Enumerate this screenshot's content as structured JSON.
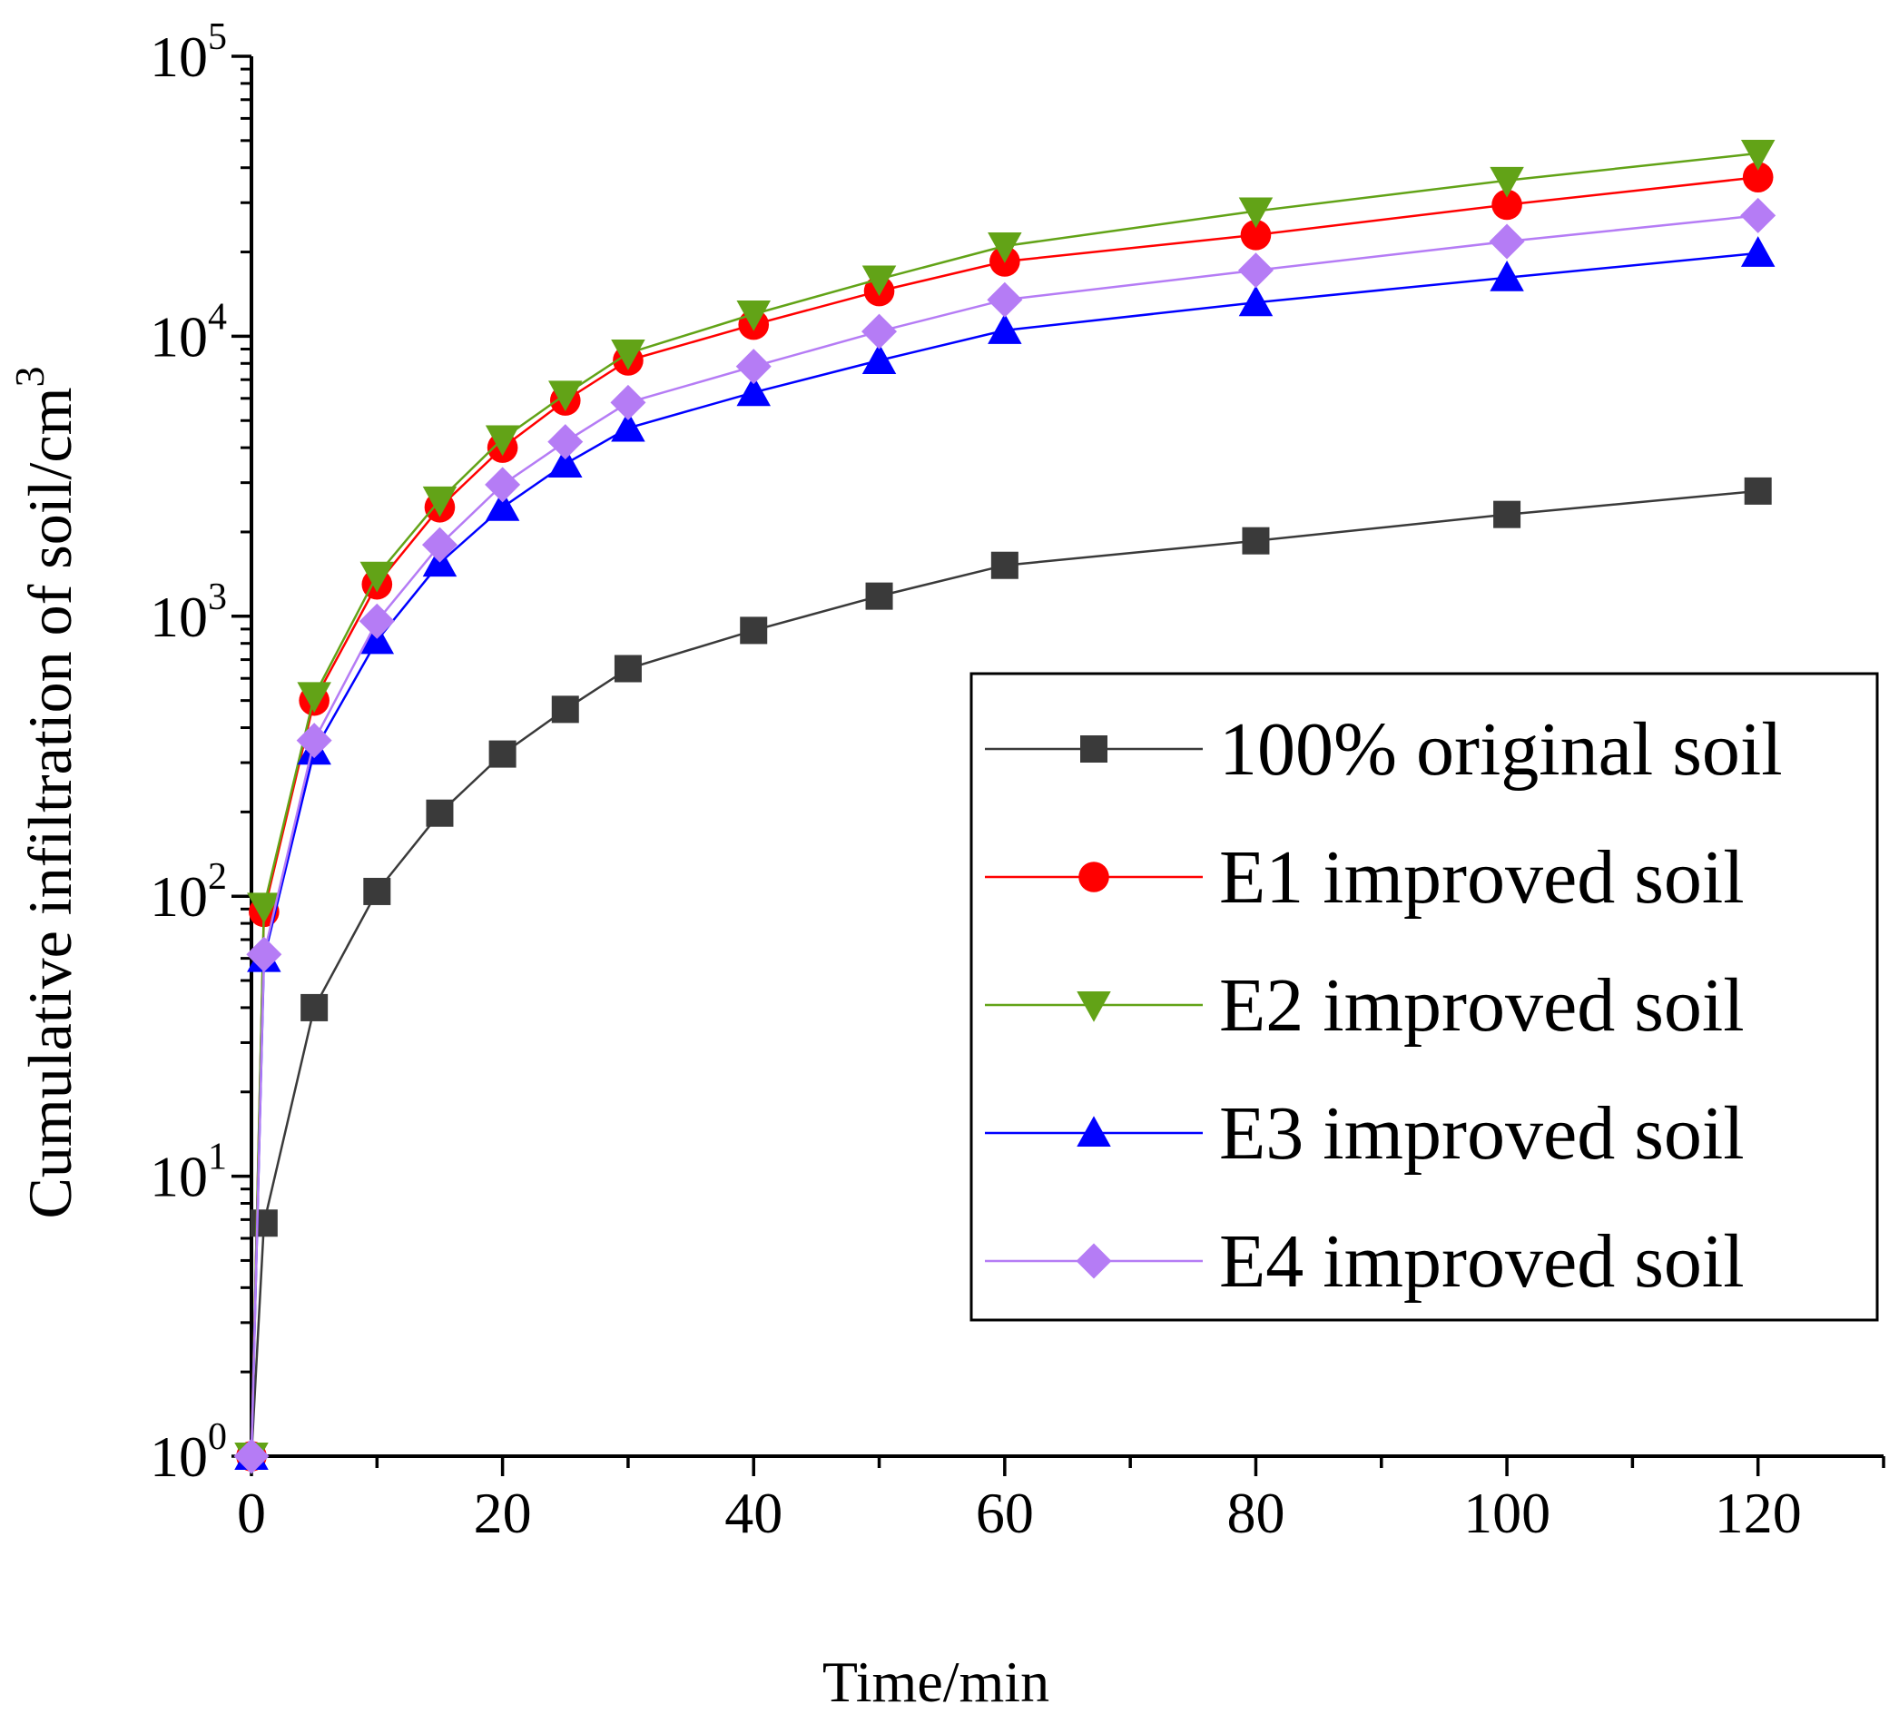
{
  "chart_data": {
    "type": "line",
    "title": "",
    "xlabel": "Time/min",
    "ylabel": "Cumulative infiltration of soil/cm",
    "ylabel_superscript": "3",
    "xscale": "linear",
    "yscale": "log",
    "xlim": [
      0,
      130
    ],
    "ylim": [
      1,
      100000
    ],
    "xticks": [
      0,
      20,
      40,
      60,
      80,
      100,
      120
    ],
    "xtick_labels": [
      "0",
      "20",
      "40",
      "60",
      "80",
      "100",
      "120"
    ],
    "yticks": [
      {
        "value": 1,
        "base": "10",
        "exp": "0"
      },
      {
        "value": 10,
        "base": "10",
        "exp": "1"
      },
      {
        "value": 100,
        "base": "10",
        "exp": "2"
      },
      {
        "value": 1000,
        "base": "10",
        "exp": "3"
      },
      {
        "value": 10000,
        "base": "10",
        "exp": "4"
      },
      {
        "value": 100000,
        "base": "10",
        "exp": "5"
      }
    ],
    "grid": false,
    "legend_position": "center-right",
    "x": [
      0,
      1,
      5,
      10,
      15,
      20,
      25,
      30,
      40,
      50,
      60,
      80,
      100,
      120
    ],
    "series": [
      {
        "name": "100% original soil",
        "color": "#3a3a3a",
        "marker": "square",
        "values": [
          1,
          6.8,
          40,
          104,
          198,
          322,
          465,
          650,
          890,
          1180,
          1520,
          1860,
          2310,
          2800
        ]
      },
      {
        "name": "E1 improved soil",
        "color": "#ff0000",
        "marker": "circle",
        "values": [
          1,
          88,
          500,
          1300,
          2450,
          4000,
          5900,
          8200,
          11000,
          14500,
          18500,
          23000,
          29500,
          37000
        ]
      },
      {
        "name": "E2 improved soil",
        "color": "#62a317",
        "marker": "triangle-down",
        "values": [
          1,
          92,
          520,
          1400,
          2600,
          4300,
          6200,
          8700,
          12000,
          16000,
          21000,
          28000,
          36000,
          45000
        ]
      },
      {
        "name": "E3 improved soil",
        "color": "#0000ff",
        "marker": "triangle-up",
        "values": [
          1,
          60,
          330,
          820,
          1550,
          2450,
          3500,
          4700,
          6300,
          8200,
          10500,
          13200,
          16200,
          19800
        ]
      },
      {
        "name": "E4 improved soil",
        "color": "#b57cf5",
        "marker": "diamond",
        "values": [
          1,
          62,
          360,
          960,
          1800,
          2950,
          4200,
          5800,
          7800,
          10400,
          13500,
          17200,
          21800,
          27000
        ]
      }
    ]
  }
}
